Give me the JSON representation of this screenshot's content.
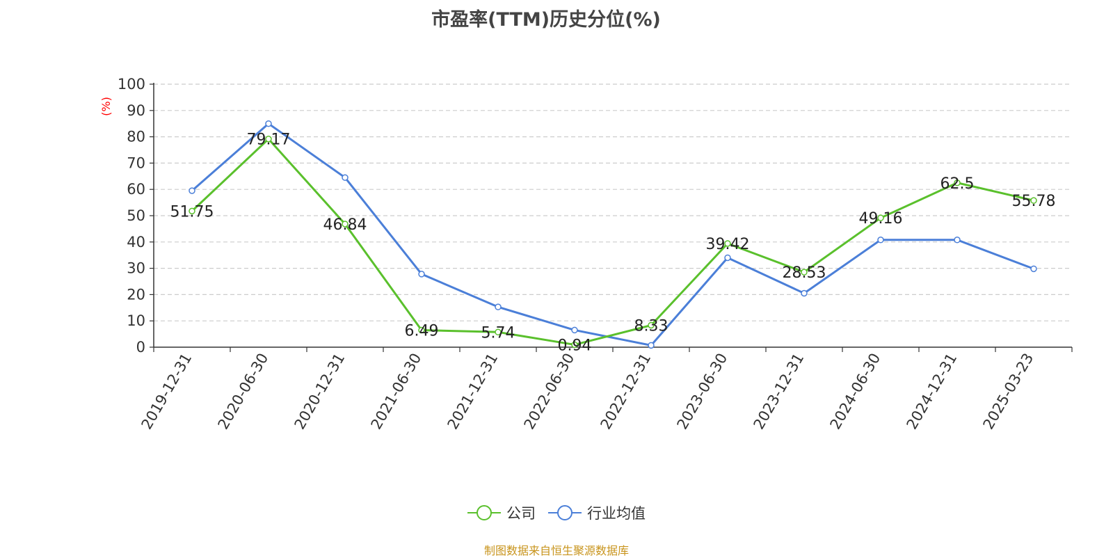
{
  "chart_data": {
    "type": "line",
    "title": "市盈率(TTM)历史分位(%)",
    "ylabel": "(%)",
    "ylim": [
      0,
      100
    ],
    "yticks": [
      0,
      10,
      20,
      30,
      40,
      50,
      60,
      70,
      80,
      90,
      100
    ],
    "categories": [
      "2019-12-31",
      "2020-06-30",
      "2020-12-31",
      "2021-06-30",
      "2021-12-31",
      "2022-06-30",
      "2022-12-31",
      "2023-06-30",
      "2023-12-31",
      "2024-06-30",
      "2024-12-31",
      "2025-03-23"
    ],
    "grid": true,
    "legend_position": "bottom",
    "series": [
      {
        "name": "公司",
        "color": "#5ac02c",
        "values": [
          51.75,
          79.17,
          46.84,
          6.49,
          5.74,
          0.94,
          8.33,
          39.42,
          28.53,
          49.16,
          62.5,
          55.78
        ],
        "labels": [
          "51.75",
          "79.17",
          "46.84",
          "6.49",
          "5.74",
          "0.94",
          "8.33",
          "39.42",
          "28.53",
          "49.16",
          "62.5",
          "55.78"
        ]
      },
      {
        "name": "行业均值",
        "color": "#4b7fd8",
        "values": [
          59.5,
          85.0,
          64.5,
          27.8,
          15.3,
          6.5,
          0.7,
          34.0,
          20.5,
          40.8,
          40.8,
          29.8
        ]
      }
    ]
  },
  "source_note": "制图数据来自恒生聚源数据库"
}
